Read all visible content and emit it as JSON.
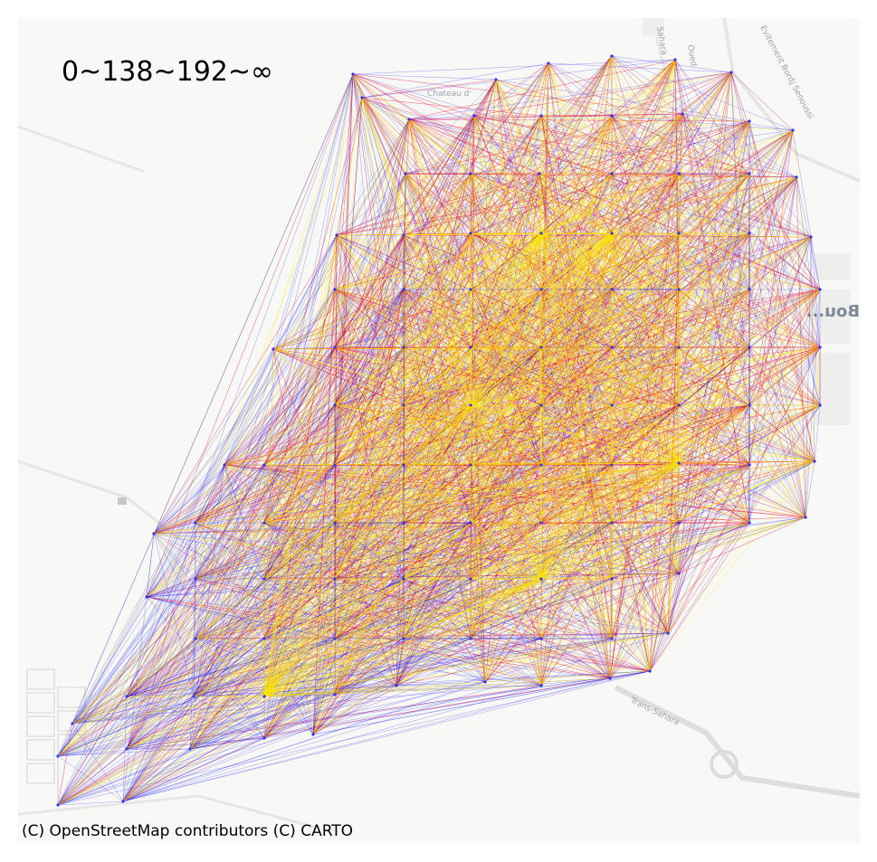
{
  "map": {
    "legend_title": "0~138~192~∞",
    "attribution": "(C) OpenStreetMap contributors (C) CARTO",
    "basemap_labels": [
      {
        "text": "Chateau d'",
        "kind": "street"
      },
      {
        "text": "Trans-Sahara",
        "kind": "street"
      },
      {
        "text": "Evitement Bordj Senoussi",
        "kind": "street"
      },
      {
        "text": "Oued",
        "kind": "street"
      },
      {
        "text": "Sahara",
        "kind": "street"
      },
      {
        "text": "Bou...",
        "kind": "town"
      }
    ],
    "edge_classes": [
      {
        "range": "0~138",
        "color": "#0000ff"
      },
      {
        "range": "138~192",
        "color": "#e8002a"
      },
      {
        "range": "192~∞",
        "color": "#ffe600"
      }
    ]
  }
}
